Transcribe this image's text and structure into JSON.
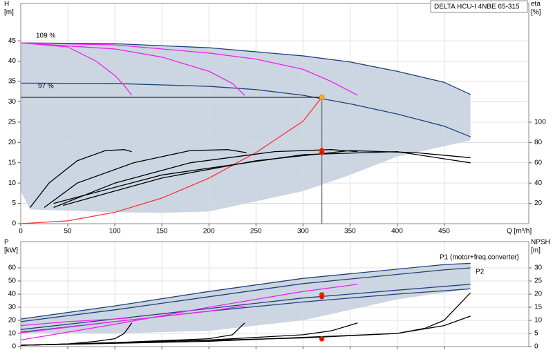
{
  "chart_data": [
    {
      "type": "line",
      "title": "DELTA HCU-I 4NBE 65-315",
      "ylabel": [
        "H",
        "[m]"
      ],
      "y2label": [
        "eta",
        "[%]"
      ],
      "xlabel": "Q [m³/h]",
      "annotations": [
        "109 %",
        "97 %"
      ],
      "xlim": [
        0,
        540
      ],
      "ylim": [
        0,
        54.2
      ],
      "y2lim": [
        0,
        217
      ],
      "xticks": [
        0,
        50,
        100,
        150,
        200,
        250,
        300,
        350,
        400,
        450
      ],
      "yticks": [
        0,
        5,
        10,
        15,
        20,
        25,
        30,
        35,
        40,
        45
      ],
      "y2ticks": [
        20,
        40,
        60,
        80,
        100
      ],
      "show_xtick_labels": true,
      "grid": true,
      "region": {
        "color": "#cbd6e2",
        "x": [
          0,
          100,
          200,
          300,
          350,
          400,
          450,
          478,
          478,
          400,
          350,
          300,
          250,
          200,
          150,
          100,
          50,
          10,
          0
        ],
        "values": [
          44.5,
          44.3,
          43.3,
          41.3,
          39.8,
          37.5,
          34.8,
          31.8,
          20.5,
          16.5,
          12,
          8,
          5.5,
          3,
          2.7,
          2.8,
          3.2,
          3.5,
          8
        ]
      },
      "series": [
        {
          "color": "#1f3f7a",
          "x": [
            0,
            100,
            200,
            300,
            350,
            400,
            450,
            478
          ],
          "values": [
            44.5,
            44.3,
            43.3,
            41.3,
            39.8,
            37.5,
            34.8,
            31.8
          ]
        },
        {
          "color": "#1f3f7a",
          "x": [
            0,
            100,
            200,
            250,
            300,
            350,
            400,
            450,
            478
          ],
          "values": [
            34.6,
            34.5,
            33.8,
            33,
            31.6,
            29.5,
            27,
            24,
            21.4
          ]
        },
        {
          "color": "#ee22ee",
          "x": [
            0,
            50,
            80,
            100,
            110,
            118
          ],
          "values": [
            44.5,
            43.5,
            40,
            36.5,
            34,
            31.6
          ]
        },
        {
          "color": "#ee22ee",
          "x": [
            0,
            100,
            150,
            200,
            225,
            238
          ],
          "values": [
            44.5,
            43,
            41,
            37.5,
            34.5,
            31.6
          ]
        },
        {
          "color": "#ee22ee",
          "x": [
            0,
            100,
            200,
            250,
            300,
            330,
            358
          ],
          "values": [
            44.5,
            44,
            42,
            40.5,
            38,
            35,
            31.6
          ]
        },
        {
          "color": "#ff3030",
          "x": [
            0,
            50,
            100,
            150,
            200,
            250,
            300,
            320
          ],
          "values": [
            0,
            0.7,
            2.8,
            6.3,
            11.2,
            17.5,
            25.2,
            31.1
          ]
        },
        {
          "color": "#000000",
          "axis": "y2",
          "x": [
            10,
            30,
            60,
            90,
            110,
            118
          ],
          "values": [
            16,
            40,
            62,
            72,
            73,
            71
          ]
        },
        {
          "color": "#000000",
          "axis": "y2",
          "x": [
            25,
            60,
            120,
            180,
            220,
            240
          ],
          "values": [
            16,
            40,
            60,
            72,
            73,
            70
          ]
        },
        {
          "color": "#000000",
          "axis": "y2",
          "x": [
            35,
            100,
            180,
            270,
            330,
            358
          ],
          "values": [
            16,
            40,
            60,
            71,
            73,
            71
          ]
        },
        {
          "color": "#000000",
          "axis": "y2",
          "x": [
            45,
            150,
            250,
            350,
            420,
            478
          ],
          "values": [
            18,
            45,
            62,
            72,
            70,
            65
          ]
        },
        {
          "color": "#000000",
          "axis": "y2",
          "x": [
            35,
            150,
            300,
            400,
            478
          ],
          "values": [
            20,
            48,
            68,
            71,
            60
          ]
        }
      ],
      "points": [
        {
          "color": "#ffb020",
          "x": 320,
          "value": 31.1,
          "guides": true
        },
        {
          "color": "#ff0000",
          "x": 320,
          "value": 72,
          "axis": "y2"
        },
        {
          "color": "#ff0000",
          "x": 320,
          "value": 70,
          "axis": "y2"
        }
      ]
    },
    {
      "type": "line",
      "ylabel": [
        "P",
        "[kW]"
      ],
      "y2label": [
        "NPSH",
        "[m]"
      ],
      "annotations": [
        "P1 (motor+freq.converter)",
        "P2"
      ],
      "xlim": [
        0,
        540
      ],
      "ylim": [
        0,
        80
      ],
      "y2lim": [
        0,
        40
      ],
      "xticks": [
        0,
        50,
        100,
        150,
        200,
        250,
        300,
        350,
        400,
        450
      ],
      "yticks": [
        0,
        10,
        20,
        30,
        40,
        50,
        60
      ],
      "y2ticks": [
        0,
        5,
        10,
        15,
        20,
        25,
        30
      ],
      "show_xtick_labels": false,
      "grid": true,
      "region": {
        "color": "#cbd6e2",
        "x": [
          0,
          100,
          200,
          300,
          450,
          478,
          478,
          400,
          300,
          200,
          100,
          0
        ],
        "values": [
          21,
          31,
          42,
          52,
          62.5,
          63.5,
          44,
          36,
          20,
          12,
          10,
          10
        ]
      },
      "series": [
        {
          "color": "#1f3f7a",
          "x": [
            0,
            100,
            200,
            300,
            450,
            478
          ],
          "values": [
            21,
            31,
            42,
            52,
            62.5,
            63.5
          ]
        },
        {
          "color": "#1f3f7a",
          "x": [
            0,
            100,
            200,
            300,
            450,
            478
          ],
          "values": [
            19,
            28,
            38,
            48,
            58.5,
            60
          ]
        },
        {
          "color": "#1f3f7a",
          "x": [
            0,
            100,
            200,
            300,
            400,
            478
          ],
          "values": [
            13,
            21,
            29,
            37,
            43,
            47.5
          ]
        },
        {
          "color": "#1f3f7a",
          "x": [
            0,
            100,
            200,
            300,
            400,
            478
          ],
          "values": [
            11,
            19,
            27,
            34,
            40,
            44
          ]
        },
        {
          "color": "#ee22ee",
          "x": [
            0,
            50,
            100,
            118
          ],
          "values": [
            16,
            19,
            21,
            22
          ]
        },
        {
          "color": "#ee22ee",
          "x": [
            0,
            100,
            200,
            238
          ],
          "values": [
            10.5,
            19,
            27,
            31
          ]
        },
        {
          "color": "#ee22ee",
          "x": [
            0,
            100,
            200,
            300,
            358
          ],
          "values": [
            5,
            17,
            30,
            42,
            47.5
          ]
        },
        {
          "color": "#000000",
          "axis": "y2",
          "x": [
            0,
            50,
            80,
            100,
            110,
            118
          ],
          "values": [
            0.5,
            1,
            2,
            3,
            5,
            9
          ]
        },
        {
          "color": "#000000",
          "axis": "y2",
          "x": [
            0,
            100,
            200,
            225,
            238
          ],
          "values": [
            0.5,
            1.5,
            3,
            4.5,
            9
          ]
        },
        {
          "color": "#000000",
          "axis": "y2",
          "x": [
            0,
            200,
            300,
            330,
            358
          ],
          "values": [
            0.5,
            2.5,
            4.5,
            6,
            9
          ]
        },
        {
          "color": "#000000",
          "axis": "y2",
          "x": [
            0,
            200,
            300,
            400,
            430,
            450,
            478
          ],
          "values": [
            0.5,
            2,
            3.5,
            5,
            7,
            10,
            20.5
          ]
        },
        {
          "color": "#000000",
          "axis": "y2",
          "x": [
            0,
            300,
            400,
            450,
            478
          ],
          "values": [
            0.5,
            3.3,
            5,
            8,
            11.6
          ]
        }
      ],
      "points": [
        {
          "color": "#ff0000",
          "x": 320,
          "value": 39.5
        },
        {
          "color": "#ff0000",
          "x": 320,
          "value": 38
        },
        {
          "color": "#ff0000",
          "x": 320,
          "value": 2.9,
          "axis": "y2"
        }
      ]
    }
  ]
}
